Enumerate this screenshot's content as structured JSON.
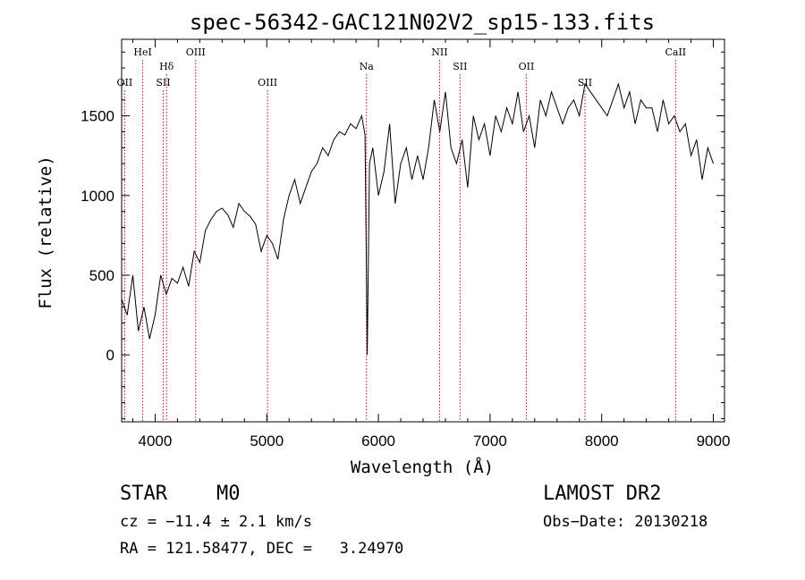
{
  "chart_data": {
    "type": "line",
    "title": "spec-56342-GAC121N02V2_sp15-133.fits",
    "xlabel": "Wavelength (Å)",
    "ylabel": "Flux (relative)",
    "xlim": [
      3700,
      9100
    ],
    "ylim": [
      -420,
      1980
    ],
    "x_ticks": [
      4000,
      5000,
      6000,
      7000,
      8000,
      9000
    ],
    "x_tick_labels": [
      "4000",
      "5000",
      "6000",
      "7000",
      "8000",
      "9000"
    ],
    "y_ticks": [
      0,
      500,
      1000,
      1500
    ],
    "y_tick_labels": [
      "0",
      "500",
      "1000",
      "1500"
    ],
    "grid": false,
    "line_color": "#000000",
    "marker_color": "#cc0000",
    "spectrum": {
      "x": [
        3700,
        3750,
        3800,
        3850,
        3900,
        3950,
        4000,
        4050,
        4100,
        4150,
        4200,
        4250,
        4300,
        4350,
        4400,
        4450,
        4500,
        4550,
        4600,
        4650,
        4700,
        4750,
        4800,
        4850,
        4900,
        4950,
        5000,
        5050,
        5100,
        5150,
        5200,
        5250,
        5300,
        5350,
        5400,
        5450,
        5500,
        5550,
        5600,
        5650,
        5700,
        5750,
        5800,
        5850,
        5880,
        5900,
        5920,
        5950,
        6000,
        6050,
        6100,
        6150,
        6200,
        6250,
        6300,
        6350,
        6400,
        6450,
        6500,
        6550,
        6600,
        6650,
        6700,
        6750,
        6800,
        6850,
        6900,
        6950,
        7000,
        7050,
        7100,
        7150,
        7200,
        7250,
        7300,
        7350,
        7400,
        7450,
        7500,
        7550,
        7600,
        7650,
        7700,
        7750,
        7800,
        7850,
        7900,
        7950,
        8000,
        8050,
        8100,
        8150,
        8200,
        8250,
        8300,
        8350,
        8400,
        8450,
        8500,
        8550,
        8600,
        8650,
        8700,
        8750,
        8800,
        8850,
        8900,
        8950,
        9000
      ],
      "y": [
        350,
        250,
        500,
        150,
        300,
        100,
        250,
        500,
        380,
        480,
        450,
        550,
        430,
        650,
        580,
        780,
        850,
        900,
        920,
        880,
        800,
        950,
        900,
        870,
        820,
        650,
        750,
        700,
        600,
        850,
        1000,
        1100,
        950,
        1050,
        1150,
        1200,
        1300,
        1250,
        1350,
        1400,
        1380,
        1450,
        1420,
        1500,
        1380,
        0,
        1200,
        1300,
        1000,
        1150,
        1450,
        950,
        1200,
        1300,
        1100,
        1250,
        1100,
        1300,
        1600,
        1400,
        1650,
        1300,
        1200,
        1350,
        1050,
        1500,
        1350,
        1450,
        1250,
        1500,
        1400,
        1550,
        1450,
        1650,
        1400,
        1500,
        1300,
        1600,
        1500,
        1650,
        1550,
        1450,
        1550,
        1600,
        1500,
        1700,
        1650,
        1600,
        1550,
        1500,
        1600,
        1700,
        1550,
        1650,
        1450,
        1600,
        1550,
        1550,
        1400,
        1600,
        1450,
        1500,
        1400,
        1450,
        1250,
        1350,
        1100,
        1300,
        1200
      ]
    },
    "line_markers": [
      {
        "label": "OII",
        "x": 3727,
        "row": "low"
      },
      {
        "label": "HeI",
        "x": 3889,
        "row": "high"
      },
      {
        "label": "Hδ",
        "x": 4102,
        "row": "mid"
      },
      {
        "label": "SII",
        "x": 4072,
        "row": "low"
      },
      {
        "label": "OIII",
        "x": 4363,
        "row": "high"
      },
      {
        "label": "OIII",
        "x": 5007,
        "row": "low"
      },
      {
        "label": "Na",
        "x": 5893,
        "row": "mid"
      },
      {
        "label": "NII",
        "x": 6548,
        "row": "high"
      },
      {
        "label": "SII",
        "x": 6731,
        "row": "mid"
      },
      {
        "label": "OII",
        "x": 7325,
        "row": "mid"
      },
      {
        "label": "SII",
        "x": 7850,
        "row": "low"
      },
      {
        "label": "CaII",
        "x": 8662,
        "row": "high"
      }
    ]
  },
  "info": {
    "object_class": "STAR",
    "subclass": "M0",
    "redshift_line": "cz = −11.4 ± 2.1 km/s",
    "coords_line": "RA = 121.58477, DEC =   3.24970",
    "survey": "LAMOST DR2",
    "obs_date_line": "Obs−Date: 20130218"
  }
}
